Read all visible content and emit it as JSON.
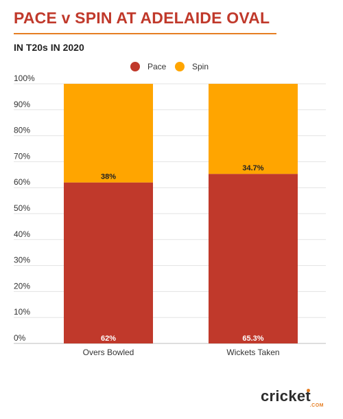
{
  "header": {
    "title": "PACE v SPIN AT ADELAIDE OVAL",
    "subtitle": "IN T20s IN 2020"
  },
  "brand": {
    "logo_text": "cricket",
    "logo_suffix": ".COM",
    "accent_color": "#e67e22"
  },
  "chart_data": {
    "type": "bar",
    "stacked": true,
    "categories": [
      "Overs Bowled",
      "Wickets Taken"
    ],
    "series": [
      {
        "name": "Pace",
        "values": [
          62,
          65.3
        ],
        "labels": [
          "62%",
          "65.3%"
        ],
        "color": "#c0392b"
      },
      {
        "name": "Spin",
        "values": [
          38,
          34.7
        ],
        "labels": [
          "38%",
          "34.7%"
        ],
        "color": "#ffa500"
      }
    ],
    "yticks": [
      "0%",
      "10%",
      "20%",
      "30%",
      "40%",
      "50%",
      "60%",
      "70%",
      "80%",
      "90%",
      "100%"
    ],
    "ylim": [
      0,
      100
    ],
    "grid": true,
    "legend": "top-center"
  }
}
